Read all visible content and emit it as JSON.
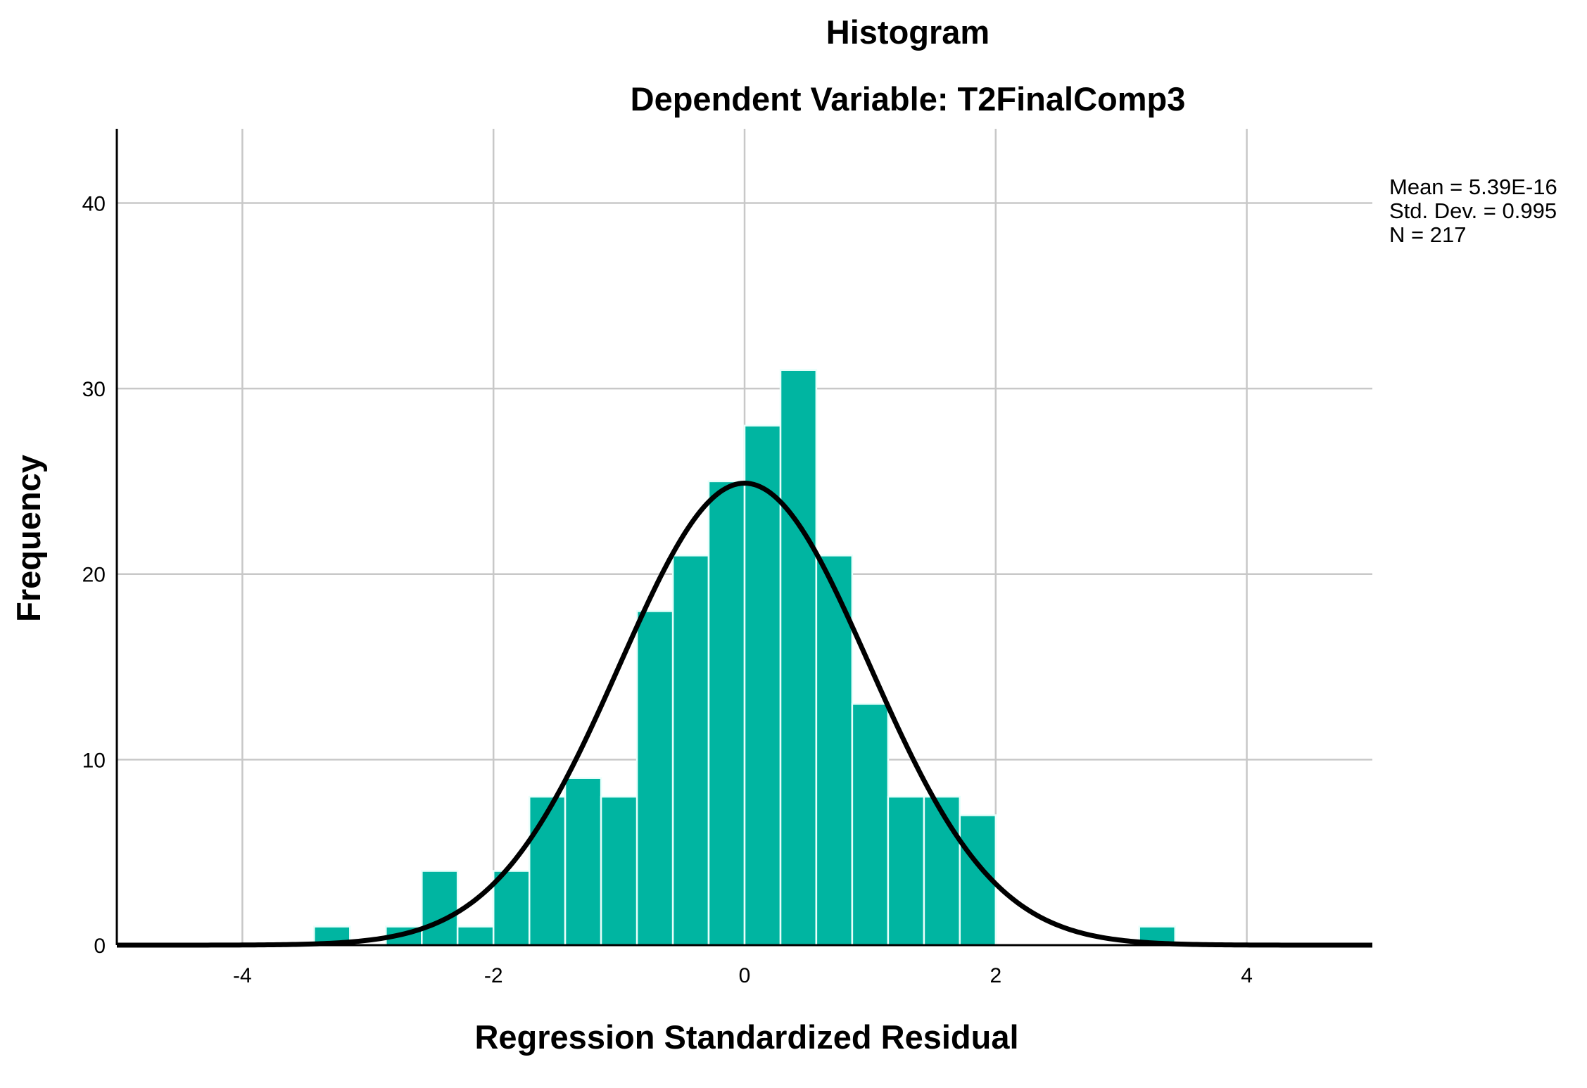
{
  "chart_data": {
    "type": "bar",
    "title": "Histogram",
    "subtitle": "Dependent Variable: T2FinalComp3",
    "xlabel": "Regression Standardized Residual",
    "ylabel": "Frequency",
    "xlim": [
      -5,
      5
    ],
    "ylim": [
      0,
      44
    ],
    "x_ticks": [
      -4,
      -2,
      0,
      2,
      4
    ],
    "y_ticks": [
      0,
      10,
      20,
      30,
      40
    ],
    "x_tick_labels": [
      "-4",
      "-2",
      "0",
      "2",
      "4"
    ],
    "y_tick_labels": [
      "0",
      "10",
      "20",
      "30",
      "40"
    ],
    "grid": true,
    "bin_width": 0.2857,
    "bins": [
      {
        "start": -3.429,
        "end": -3.143,
        "count": 1
      },
      {
        "start": -2.857,
        "end": -2.571,
        "count": 1
      },
      {
        "start": -2.571,
        "end": -2.286,
        "count": 4
      },
      {
        "start": -2.286,
        "end": -2.0,
        "count": 1
      },
      {
        "start": -2.0,
        "end": -1.714,
        "count": 4
      },
      {
        "start": -1.714,
        "end": -1.429,
        "count": 8
      },
      {
        "start": -1.429,
        "end": -1.143,
        "count": 9
      },
      {
        "start": -1.143,
        "end": -0.857,
        "count": 8
      },
      {
        "start": -0.857,
        "end": -0.571,
        "count": 18
      },
      {
        "start": -0.571,
        "end": -0.286,
        "count": 21
      },
      {
        "start": -0.286,
        "end": 0.0,
        "count": 25
      },
      {
        "start": 0.0,
        "end": 0.286,
        "count": 28
      },
      {
        "start": 0.286,
        "end": 0.571,
        "count": 31
      },
      {
        "start": 0.571,
        "end": 0.857,
        "count": 21
      },
      {
        "start": 0.857,
        "end": 1.143,
        "count": 13
      },
      {
        "start": 1.143,
        "end": 1.429,
        "count": 8
      },
      {
        "start": 1.429,
        "end": 1.714,
        "count": 8
      },
      {
        "start": 1.714,
        "end": 2.0,
        "count": 7
      },
      {
        "start": 3.143,
        "end": 3.429,
        "count": 1
      }
    ],
    "normal_curve": {
      "mean": 0,
      "std_dev": 0.995,
      "n": 217,
      "peak": 24.9
    },
    "stats_lines": [
      "Mean = 5.39E-16",
      "Std. Dev. = 0.995",
      "N = 217"
    ],
    "legend_position": "top-right",
    "colors": {
      "bar": "#00B5A1",
      "bar_edge": "#E8FFFB",
      "curve": "#000000",
      "grid": "#C8C8C8",
      "axis": "#000000"
    }
  }
}
